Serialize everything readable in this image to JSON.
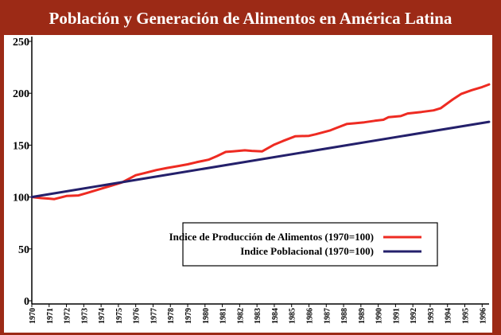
{
  "title": "Población y Generación de Alimentos en América Latina",
  "colors": {
    "background": "#9c2a16",
    "food": "#ee2b22",
    "population": "#24206b"
  },
  "chart_data": {
    "type": "line",
    "title": "Población y Generación de Alimentos en América Latina",
    "xlabel": "",
    "ylabel": "",
    "ylim": [
      0,
      250
    ],
    "yticks": [
      0,
      50,
      100,
      150,
      200,
      250
    ],
    "grid": false,
    "legend_placement": "lower-right",
    "x": [
      "1970",
      "1971",
      "1972",
      "1973",
      "1974",
      "1975",
      "1976",
      "1977",
      "1978",
      "1979",
      "1980",
      "1981",
      "1982",
      "1983",
      "1984",
      "1985",
      "1986",
      "1987",
      "1988",
      "1989",
      "1990",
      "1991",
      "1992",
      "1993",
      "1994",
      "1995",
      "1996"
    ],
    "series": [
      {
        "name": "Indice de Producción de Alimentos (1970=100)",
        "color": "#ee2b22",
        "points": [
          [
            1970.0,
            100
          ],
          [
            1970.5,
            99
          ],
          [
            1971.0,
            98.5
          ],
          [
            1971.3,
            98
          ],
          [
            1972.0,
            101
          ],
          [
            1972.7,
            101.5
          ],
          [
            1973.2,
            104
          ],
          [
            1974.0,
            108
          ],
          [
            1974.6,
            111
          ],
          [
            1975.2,
            114
          ],
          [
            1976.0,
            121
          ],
          [
            1976.5,
            123
          ],
          [
            1977.2,
            126
          ],
          [
            1977.8,
            128
          ],
          [
            1978.5,
            130
          ],
          [
            1979.0,
            131.5
          ],
          [
            1979.5,
            133.5
          ],
          [
            1980.2,
            136
          ],
          [
            1980.7,
            139.5
          ],
          [
            1981.2,
            143.5
          ],
          [
            1981.6,
            144
          ],
          [
            1982.3,
            145
          ],
          [
            1982.7,
            144.5
          ],
          [
            1983.3,
            144
          ],
          [
            1984.0,
            150.5
          ],
          [
            1984.5,
            154
          ],
          [
            1985.2,
            158.5
          ],
          [
            1986.0,
            159
          ],
          [
            1986.4,
            160.5
          ],
          [
            1987.2,
            164
          ],
          [
            1987.5,
            166
          ],
          [
            1988.2,
            170.5
          ],
          [
            1988.6,
            171
          ],
          [
            1989.2,
            172
          ],
          [
            1989.8,
            173.5
          ],
          [
            1990.3,
            174.5
          ],
          [
            1990.6,
            177
          ],
          [
            1991.3,
            178
          ],
          [
            1991.7,
            180.5
          ],
          [
            1992.5,
            182
          ],
          [
            1993.2,
            183.5
          ],
          [
            1993.6,
            185.5
          ],
          [
            1994.3,
            194
          ],
          [
            1994.8,
            199.5
          ],
          [
            1995.4,
            203
          ],
          [
            1996.0,
            206
          ],
          [
            1996.4,
            208.5
          ]
        ]
      },
      {
        "name": "Indice Poblacional (1970=100)",
        "color": "#24206b",
        "points": [
          [
            1970.0,
            100
          ],
          [
            1996.4,
            172.5
          ]
        ]
      }
    ]
  }
}
